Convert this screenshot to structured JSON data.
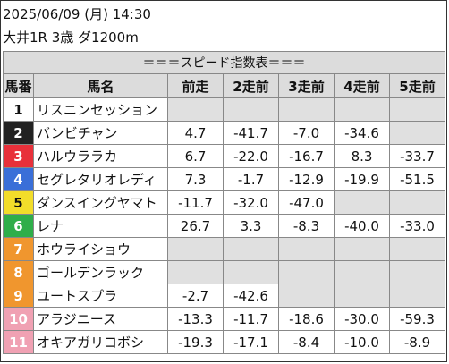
{
  "header": {
    "datetime": "2025/06/09 (月) 14:30",
    "race": "大井1R 3歳 ダ1200m"
  },
  "table": {
    "caption": "＝＝＝スピード指数表＝＝＝",
    "columns": [
      "馬番",
      "馬名",
      "前走",
      "2走前",
      "3走前",
      "4走前",
      "5走前"
    ],
    "rows": [
      {
        "num": "1",
        "name": "リスニンセッション",
        "bg": "#ffffff",
        "fg": "#111111",
        "v": [
          "",
          "",
          "",
          "",
          ""
        ]
      },
      {
        "num": "2",
        "name": "バンビチャン",
        "bg": "#222222",
        "fg": "#ffffff",
        "v": [
          "4.7",
          "-41.7",
          "-7.0",
          "-34.6",
          ""
        ]
      },
      {
        "num": "3",
        "name": "ハルウララカ",
        "bg": "#e8303a",
        "fg": "#ffffff",
        "v": [
          "6.7",
          "-22.0",
          "-16.7",
          "8.3",
          "-33.7"
        ]
      },
      {
        "num": "4",
        "name": "セグレタリオレディ",
        "bg": "#3a6fd8",
        "fg": "#ffffff",
        "v": [
          "7.3",
          "-1.7",
          "-12.9",
          "-19.9",
          "-51.5"
        ]
      },
      {
        "num": "5",
        "name": "ダンスイングヤマト",
        "bg": "#f2dd2a",
        "fg": "#111111",
        "v": [
          "-11.7",
          "-32.0",
          "-47.0",
          "",
          ""
        ]
      },
      {
        "num": "6",
        "name": "レナ",
        "bg": "#2fae4a",
        "fg": "#ffffff",
        "v": [
          "26.7",
          "3.3",
          "-8.3",
          "-40.0",
          "-33.0"
        ]
      },
      {
        "num": "7",
        "name": "ホウライショウ",
        "bg": "#f0962e",
        "fg": "#ffffff",
        "v": [
          "",
          "",
          "",
          "",
          ""
        ]
      },
      {
        "num": "8",
        "name": "ゴールデンラック",
        "bg": "#f0962e",
        "fg": "#ffffff",
        "v": [
          "",
          "",
          "",
          "",
          ""
        ]
      },
      {
        "num": "9",
        "name": "ユートスプラ",
        "bg": "#f0962e",
        "fg": "#ffffff",
        "v": [
          "-2.7",
          "-42.6",
          "",
          "",
          ""
        ]
      },
      {
        "num": "10",
        "name": "アラジニース",
        "bg": "#f0a1b3",
        "fg": "#ffffff",
        "v": [
          "-13.3",
          "-11.7",
          "-18.6",
          "-30.0",
          "-59.3"
        ]
      },
      {
        "num": "11",
        "name": "オキアガリコボシ",
        "bg": "#f0a1b3",
        "fg": "#ffffff",
        "v": [
          "-19.3",
          "-17.1",
          "-8.4",
          "-10.0",
          "-8.9"
        ]
      }
    ]
  }
}
